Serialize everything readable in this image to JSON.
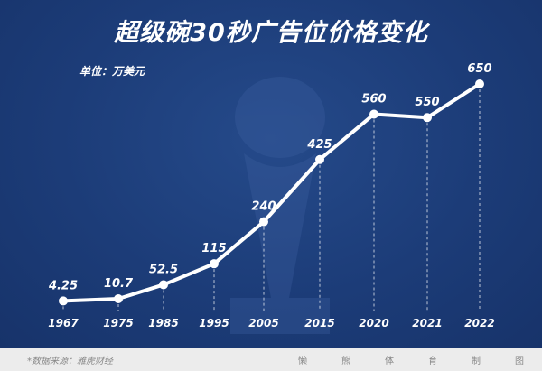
{
  "chart_data": {
    "type": "line",
    "title": "超级碗30秒广告位价格变化",
    "unit_label": "单位：万美元",
    "categories": [
      "1967",
      "1975",
      "1985",
      "1995",
      "2005",
      "2015",
      "2020",
      "2021",
      "2022"
    ],
    "values": [
      4.25,
      10.7,
      52.5,
      115,
      240,
      425,
      560,
      550,
      650
    ],
    "value_labels": [
      "4.25",
      "10.7",
      "52.5",
      "115",
      "240",
      "425",
      "560",
      "550",
      "650"
    ],
    "ylim": [
      0,
      650
    ],
    "grid": false,
    "line_color": "#ffffff",
    "background_color": "#1c3c78"
  },
  "footer": {
    "source": "*数据来源：雅虎财经",
    "maker": [
      "懒",
      "熊",
      "体",
      "育",
      "制",
      "图"
    ]
  },
  "watermark": "懒熊体育"
}
